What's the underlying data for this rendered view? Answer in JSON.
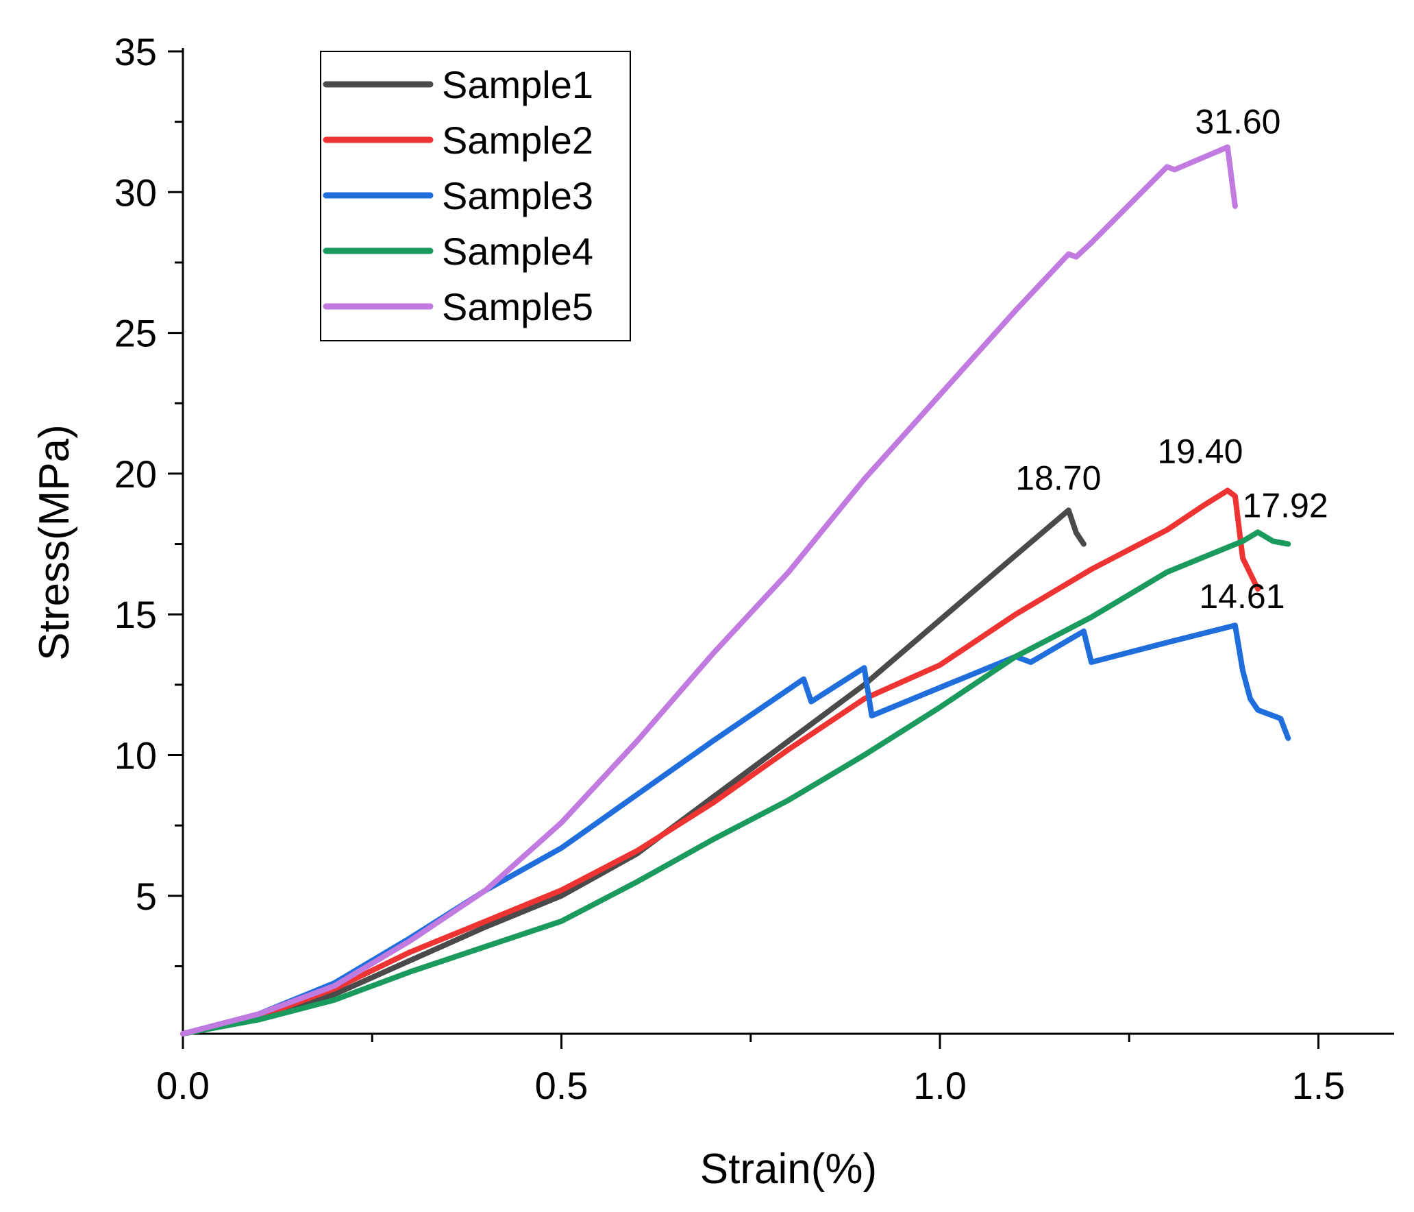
{
  "chart_data": {
    "type": "line",
    "title": "",
    "xlabel": "Strain(%)",
    "ylabel": "Stress(MPa)",
    "xlim": [
      0,
      1.6
    ],
    "ylim": [
      0.1,
      35
    ],
    "xticks": [
      0.0,
      0.5,
      1.0,
      1.5
    ],
    "xtick_labels": [
      "0.0",
      "0.5",
      "1.0",
      "1.5"
    ],
    "xminor": [
      0.25,
      0.75,
      1.25
    ],
    "yticks": [
      5,
      10,
      15,
      20,
      25,
      30,
      35
    ],
    "ytick_labels": [
      "5",
      "10",
      "15",
      "20",
      "25",
      "30",
      "35"
    ],
    "yminor": [
      2.5,
      7.5,
      12.5,
      17.5,
      22.5,
      27.5,
      32.5
    ],
    "grid": false,
    "legend_position": "top-left",
    "series": [
      {
        "name": "Sample1",
        "color": "#4a4a4a",
        "x": [
          0.0,
          0.1,
          0.2,
          0.3,
          0.4,
          0.5,
          0.6,
          0.7,
          0.8,
          0.9,
          1.0,
          1.1,
          1.17,
          1.18,
          1.19
        ],
        "y": [
          0.1,
          0.7,
          1.5,
          2.7,
          3.9,
          5.0,
          6.5,
          8.5,
          10.5,
          12.5,
          14.8,
          17.1,
          18.7,
          17.9,
          17.5
        ]
      },
      {
        "name": "Sample2",
        "color": "#ee3333",
        "x": [
          0.0,
          0.1,
          0.2,
          0.3,
          0.4,
          0.5,
          0.6,
          0.7,
          0.8,
          0.9,
          0.95,
          1.0,
          1.1,
          1.2,
          1.3,
          1.35,
          1.38,
          1.39,
          1.4,
          1.42
        ],
        "y": [
          0.1,
          0.7,
          1.7,
          3.0,
          4.1,
          5.2,
          6.6,
          8.3,
          10.2,
          12.0,
          12.6,
          13.2,
          15.0,
          16.6,
          18.0,
          18.9,
          19.4,
          19.2,
          17.0,
          15.9
        ]
      },
      {
        "name": "Sample3",
        "color": "#1f6edc",
        "x": [
          0.0,
          0.1,
          0.2,
          0.3,
          0.4,
          0.5,
          0.6,
          0.7,
          0.82,
          0.83,
          0.9,
          0.91,
          1.0,
          1.1,
          1.12,
          1.19,
          1.2,
          1.3,
          1.39,
          1.4,
          1.41,
          1.42,
          1.45,
          1.46
        ],
        "y": [
          0.1,
          0.8,
          1.9,
          3.5,
          5.2,
          6.7,
          8.6,
          10.5,
          12.7,
          11.9,
          13.1,
          11.4,
          12.4,
          13.5,
          13.3,
          14.4,
          13.3,
          14.0,
          14.61,
          13.0,
          12.0,
          11.6,
          11.3,
          10.6
        ]
      },
      {
        "name": "Sample4",
        "color": "#1a9a5c",
        "x": [
          0.0,
          0.1,
          0.2,
          0.3,
          0.4,
          0.5,
          0.6,
          0.7,
          0.8,
          0.9,
          1.0,
          1.1,
          1.2,
          1.3,
          1.4,
          1.42,
          1.44,
          1.46
        ],
        "y": [
          0.1,
          0.6,
          1.3,
          2.3,
          3.2,
          4.1,
          5.5,
          7.0,
          8.4,
          10.0,
          11.7,
          13.5,
          14.9,
          16.5,
          17.6,
          17.92,
          17.6,
          17.5
        ]
      },
      {
        "name": "Sample5",
        "color": "#c07ae0",
        "x": [
          0.0,
          0.1,
          0.2,
          0.3,
          0.4,
          0.5,
          0.6,
          0.7,
          0.8,
          0.9,
          1.0,
          1.1,
          1.17,
          1.18,
          1.2,
          1.3,
          1.31,
          1.38,
          1.39
        ],
        "y": [
          0.1,
          0.8,
          1.8,
          3.4,
          5.2,
          7.6,
          10.5,
          13.6,
          16.5,
          19.8,
          22.8,
          25.8,
          27.8,
          27.7,
          28.2,
          30.9,
          30.8,
          31.6,
          29.5
        ]
      }
    ],
    "annotations": [
      {
        "text": "18.70",
        "x": 1.17,
        "y": 18.7
      },
      {
        "text": "19.40",
        "x": 1.38,
        "y": 19.4
      },
      {
        "text": "17.92",
        "x": 1.42,
        "y": 17.92
      },
      {
        "text": "14.61",
        "x": 1.39,
        "y": 14.61
      },
      {
        "text": "31.60",
        "x": 1.38,
        "y": 31.6
      }
    ]
  }
}
